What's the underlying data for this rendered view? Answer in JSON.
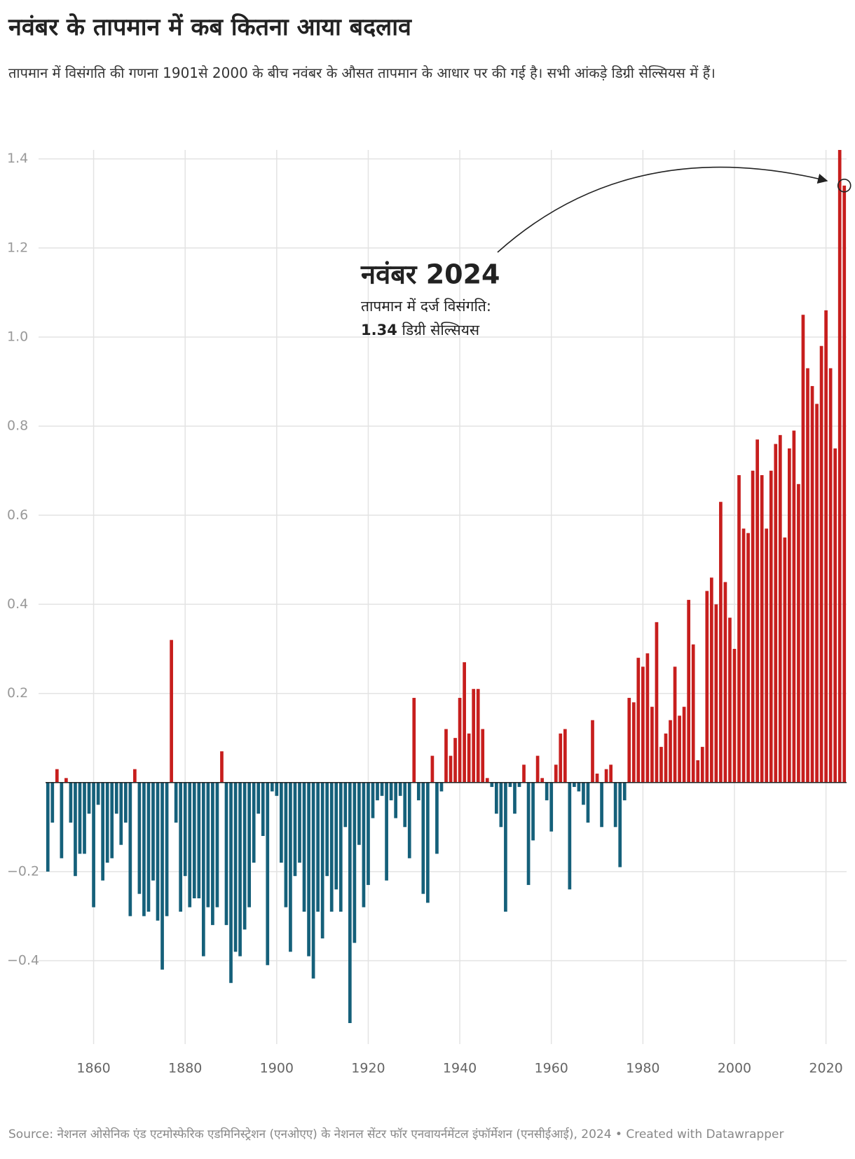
{
  "chart_data": {
    "type": "bar",
    "title": "नवंबर के तापमान में कब कितना आया बदलाव",
    "subtitle": "तापमान में विसंगति की गणना 1901से 2000 के बीच नवंबर के औसत तापमान के आधार पर की गई है। सभी आंकड़े डिग्री सेल्सियस में हैं।",
    "source": "Source: नेशनल ओसेनिक एंड एटमोस्फेरिक एडमिनिस्ट्रेशन (एनओएए) के नेशनल सेंटर फॉर एनवायर्नमेंटल इंफॉर्मेशन (एनसीईआई), 2024 • Created with Datawrapper",
    "annotation": {
      "title": "नवंबर 2024",
      "line1": "तापमान में दर्ज विसंगति:",
      "value": "1.34",
      "unit": "डिग्री सेल्सियस"
    },
    "colors": {
      "positive": "#c71e1d",
      "negative": "#15607a"
    },
    "xlim": [
      1849.5,
      2024.5
    ],
    "xticks": [
      1860,
      1880,
      1900,
      1920,
      1940,
      1960,
      1980,
      2000,
      2020
    ],
    "ylim": [
      -0.54,
      1.42
    ],
    "yticks": [
      {
        "value": -0.4,
        "label": "−0.4"
      },
      {
        "value": -0.2,
        "label": "−0.2"
      },
      0.2,
      0.4,
      0.6,
      0.8,
      {
        "value": 1.0,
        "label": "1.0"
      },
      1.2,
      1.4
    ],
    "grid": true,
    "x": [
      1850,
      1851,
      1852,
      1853,
      1854,
      1855,
      1856,
      1857,
      1858,
      1859,
      1860,
      1861,
      1862,
      1863,
      1864,
      1865,
      1866,
      1867,
      1868,
      1869,
      1870,
      1871,
      1872,
      1873,
      1874,
      1875,
      1876,
      1877,
      1878,
      1879,
      1880,
      1881,
      1882,
      1883,
      1884,
      1885,
      1886,
      1887,
      1888,
      1889,
      1890,
      1891,
      1892,
      1893,
      1894,
      1895,
      1896,
      1897,
      1898,
      1899,
      1900,
      1901,
      1902,
      1903,
      1904,
      1905,
      1906,
      1907,
      1908,
      1909,
      1910,
      1911,
      1912,
      1913,
      1914,
      1915,
      1916,
      1917,
      1918,
      1919,
      1920,
      1921,
      1922,
      1923,
      1924,
      1925,
      1926,
      1927,
      1928,
      1929,
      1930,
      1931,
      1932,
      1933,
      1934,
      1935,
      1936,
      1937,
      1938,
      1939,
      1940,
      1941,
      1942,
      1943,
      1944,
      1945,
      1946,
      1947,
      1948,
      1949,
      1950,
      1951,
      1952,
      1953,
      1954,
      1955,
      1956,
      1957,
      1958,
      1959,
      1960,
      1961,
      1962,
      1963,
      1964,
      1965,
      1966,
      1967,
      1968,
      1969,
      1970,
      1971,
      1972,
      1973,
      1974,
      1975,
      1976,
      1977,
      1978,
      1979,
      1980,
      1981,
      1982,
      1983,
      1984,
      1985,
      1986,
      1987,
      1988,
      1989,
      1990,
      1991,
      1992,
      1993,
      1994,
      1995,
      1996,
      1997,
      1998,
      1999,
      2000,
      2001,
      2002,
      2003,
      2004,
      2005,
      2006,
      2007,
      2008,
      2009,
      2010,
      2011,
      2012,
      2013,
      2014,
      2015,
      2016,
      2017,
      2018,
      2019,
      2020,
      2021,
      2022,
      2023,
      2024
    ],
    "values": [
      -0.2,
      -0.09,
      0.03,
      -0.17,
      0.01,
      -0.09,
      -0.21,
      -0.16,
      -0.16,
      -0.07,
      -0.28,
      -0.05,
      -0.22,
      -0.18,
      -0.17,
      -0.07,
      -0.14,
      -0.09,
      -0.3,
      0.03,
      -0.25,
      -0.3,
      -0.29,
      -0.22,
      -0.31,
      -0.42,
      -0.3,
      0.32,
      -0.09,
      -0.29,
      -0.21,
      -0.28,
      -0.26,
      -0.26,
      -0.39,
      -0.28,
      -0.32,
      -0.28,
      0.07,
      -0.32,
      -0.45,
      -0.38,
      -0.39,
      -0.33,
      -0.28,
      -0.18,
      -0.07,
      -0.12,
      -0.41,
      -0.02,
      -0.03,
      -0.18,
      -0.28,
      -0.38,
      -0.21,
      -0.18,
      -0.29,
      -0.39,
      -0.44,
      -0.29,
      -0.35,
      -0.21,
      -0.29,
      -0.24,
      -0.29,
      -0.1,
      -0.54,
      -0.36,
      -0.14,
      -0.28,
      -0.23,
      -0.08,
      -0.04,
      -0.03,
      -0.22,
      -0.04,
      -0.08,
      -0.03,
      -0.1,
      -0.17,
      0.19,
      -0.04,
      -0.25,
      -0.27,
      0.06,
      -0.16,
      -0.02,
      0.12,
      0.06,
      0.1,
      0.19,
      0.27,
      0.11,
      0.21,
      0.21,
      0.12,
      0.01,
      -0.01,
      -0.07,
      -0.1,
      -0.29,
      -0.01,
      -0.07,
      -0.01,
      0.04,
      -0.23,
      -0.13,
      0.06,
      0.01,
      -0.04,
      -0.11,
      0.04,
      0.11,
      0.12,
      -0.24,
      -0.01,
      -0.02,
      -0.05,
      -0.09,
      0.14,
      0.02,
      -0.1,
      0.03,
      0.04,
      -0.1,
      -0.19,
      -0.04,
      0.19,
      0.18,
      0.28,
      0.26,
      0.29,
      0.17,
      0.36,
      0.08,
      0.11,
      0.14,
      0.26,
      0.15,
      0.17,
      0.41,
      0.31,
      0.05,
      0.08,
      0.43,
      0.46,
      0.4,
      0.63,
      0.45,
      0.37,
      0.3,
      0.69,
      0.57,
      0.56,
      0.7,
      0.77,
      0.69,
      0.57,
      0.7,
      0.76,
      0.78,
      0.55,
      0.75,
      0.79,
      0.67,
      1.05,
      0.93,
      0.89,
      0.85,
      0.98,
      1.06,
      0.93,
      0.75,
      1.42,
      1.34
    ]
  }
}
